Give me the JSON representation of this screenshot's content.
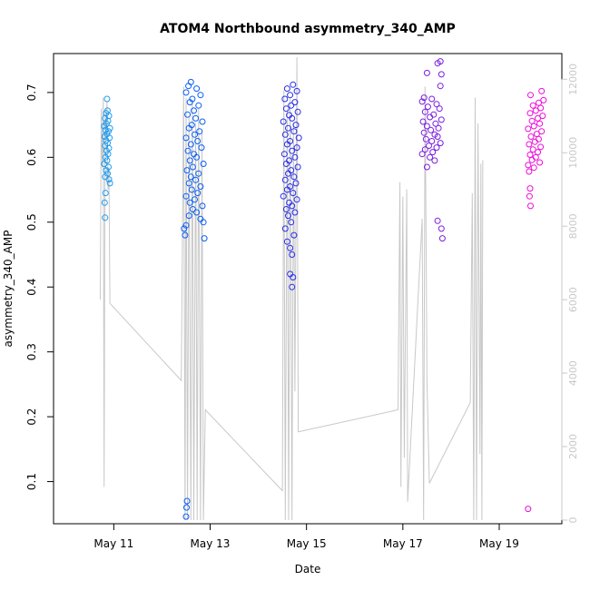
{
  "chart_data": {
    "type": "scatter",
    "title": "ATOM4 Northbound asymmetry_340_AMP",
    "xlabel": "Date",
    "ylabel": "asymmetry_340_AMP",
    "x_ticks": [
      "May 11",
      "May 13",
      "May 15",
      "May 17",
      "May 19"
    ],
    "x_tick_days": [
      11,
      13,
      15,
      17,
      19
    ],
    "xlim": [
      9.75,
      20.3
    ],
    "ylim": [
      0.035,
      0.76
    ],
    "y_ticks": [
      0.1,
      0.2,
      0.3,
      0.4,
      0.5,
      0.6,
      0.7
    ],
    "y2lim": [
      -100,
      12700
    ],
    "y2_ticks": [
      0,
      2000,
      4000,
      6000,
      8000,
      10000,
      12000
    ],
    "grid": false,
    "legend": "none",
    "series": [
      {
        "color": "#1f9bef",
        "x_range": [
          10.75,
          10.95
        ],
        "points": [
          [
            10.86,
            0.69
          ],
          [
            10.87,
            0.672
          ],
          [
            10.84,
            0.668
          ],
          [
            10.9,
            0.664
          ],
          [
            10.82,
            0.66
          ],
          [
            10.88,
            0.656
          ],
          [
            10.85,
            0.652
          ],
          [
            10.8,
            0.648
          ],
          [
            10.92,
            0.645
          ],
          [
            10.83,
            0.642
          ],
          [
            10.89,
            0.64
          ],
          [
            10.86,
            0.636
          ],
          [
            10.81,
            0.632
          ],
          [
            10.91,
            0.63
          ],
          [
            10.84,
            0.626
          ],
          [
            10.87,
            0.622
          ],
          [
            10.82,
            0.618
          ],
          [
            10.9,
            0.614
          ],
          [
            10.85,
            0.61
          ],
          [
            10.88,
            0.605
          ],
          [
            10.83,
            0.6
          ],
          [
            10.86,
            0.595
          ],
          [
            10.8,
            0.59
          ],
          [
            10.89,
            0.585
          ],
          [
            10.84,
            0.58
          ],
          [
            10.87,
            0.575
          ],
          [
            10.82,
            0.57
          ],
          [
            10.9,
            0.566
          ],
          [
            10.92,
            0.56
          ],
          [
            10.83,
            0.545
          ],
          [
            10.81,
            0.53
          ],
          [
            10.82,
            0.507
          ]
        ]
      },
      {
        "color": "#0a5ff5",
        "x_range": [
          12.45,
          12.9
        ],
        "points": [
          [
            12.6,
            0.716
          ],
          [
            12.55,
            0.71
          ],
          [
            12.72,
            0.706
          ],
          [
            12.5,
            0.7
          ],
          [
            12.8,
            0.696
          ],
          [
            12.63,
            0.69
          ],
          [
            12.58,
            0.685
          ],
          [
            12.76,
            0.68
          ],
          [
            12.66,
            0.672
          ],
          [
            12.53,
            0.666
          ],
          [
            12.7,
            0.66
          ],
          [
            12.84,
            0.655
          ],
          [
            12.62,
            0.65
          ],
          [
            12.56,
            0.645
          ],
          [
            12.78,
            0.64
          ],
          [
            12.68,
            0.635
          ],
          [
            12.5,
            0.63
          ],
          [
            12.74,
            0.625
          ],
          [
            12.6,
            0.62
          ],
          [
            12.82,
            0.615
          ],
          [
            12.54,
            0.61
          ],
          [
            12.66,
            0.605
          ],
          [
            12.72,
            0.6
          ],
          [
            12.58,
            0.595
          ],
          [
            12.86,
            0.59
          ],
          [
            12.64,
            0.585
          ],
          [
            12.52,
            0.58
          ],
          [
            12.76,
            0.575
          ],
          [
            12.6,
            0.57
          ],
          [
            12.7,
            0.565
          ],
          [
            12.56,
            0.56
          ],
          [
            12.8,
            0.555
          ],
          [
            12.62,
            0.55
          ],
          [
            12.74,
            0.545
          ],
          [
            12.5,
            0.54
          ],
          [
            12.68,
            0.535
          ],
          [
            12.58,
            0.53
          ],
          [
            12.84,
            0.525
          ],
          [
            12.64,
            0.52
          ],
          [
            12.72,
            0.515
          ],
          [
            12.56,
            0.51
          ],
          [
            12.8,
            0.505
          ],
          [
            12.86,
            0.5
          ],
          [
            12.5,
            0.495
          ],
          [
            12.46,
            0.49
          ],
          [
            12.48,
            0.48
          ],
          [
            12.88,
            0.475
          ],
          [
            12.52,
            0.07
          ],
          [
            12.51,
            0.06
          ],
          [
            12.5,
            0.046
          ]
        ]
      },
      {
        "color": "#2a2ee8",
        "x_range": [
          14.5,
          14.9
        ],
        "points": [
          [
            14.72,
            0.712
          ],
          [
            14.6,
            0.706
          ],
          [
            14.8,
            0.702
          ],
          [
            14.66,
            0.696
          ],
          [
            14.55,
            0.69
          ],
          [
            14.76,
            0.685
          ],
          [
            14.68,
            0.68
          ],
          [
            14.58,
            0.675
          ],
          [
            14.82,
            0.67
          ],
          [
            14.64,
            0.665
          ],
          [
            14.7,
            0.66
          ],
          [
            14.52,
            0.655
          ],
          [
            14.78,
            0.65
          ],
          [
            14.62,
            0.645
          ],
          [
            14.74,
            0.64
          ],
          [
            14.56,
            0.635
          ],
          [
            14.84,
            0.63
          ],
          [
            14.66,
            0.625
          ],
          [
            14.6,
            0.62
          ],
          [
            14.8,
            0.615
          ],
          [
            14.7,
            0.61
          ],
          [
            14.54,
            0.605
          ],
          [
            14.76,
            0.6
          ],
          [
            14.64,
            0.595
          ],
          [
            14.58,
            0.59
          ],
          [
            14.82,
            0.585
          ],
          [
            14.68,
            0.58
          ],
          [
            14.62,
            0.575
          ],
          [
            14.74,
            0.57
          ],
          [
            14.56,
            0.565
          ],
          [
            14.78,
            0.56
          ],
          [
            14.66,
            0.555
          ],
          [
            14.6,
            0.55
          ],
          [
            14.72,
            0.545
          ],
          [
            14.52,
            0.54
          ],
          [
            14.8,
            0.535
          ],
          [
            14.64,
            0.53
          ],
          [
            14.7,
            0.525
          ],
          [
            14.58,
            0.52
          ],
          [
            14.76,
            0.515
          ],
          [
            14.62,
            0.51
          ],
          [
            14.68,
            0.5
          ],
          [
            14.56,
            0.49
          ],
          [
            14.74,
            0.48
          ],
          [
            14.6,
            0.47
          ],
          [
            14.66,
            0.46
          ],
          [
            14.7,
            0.45
          ],
          [
            14.66,
            0.42
          ],
          [
            14.72,
            0.415
          ],
          [
            14.7,
            0.4
          ]
        ]
      },
      {
        "color": "#7a1ee0",
        "x_range": [
          17.3,
          17.85
        ],
        "points": [
          [
            17.78,
            0.748
          ],
          [
            17.72,
            0.745
          ],
          [
            17.5,
            0.73
          ],
          [
            17.8,
            0.728
          ],
          [
            17.78,
            0.71
          ],
          [
            17.44,
            0.692
          ],
          [
            17.6,
            0.69
          ],
          [
            17.4,
            0.686
          ],
          [
            17.7,
            0.682
          ],
          [
            17.52,
            0.678
          ],
          [
            17.76,
            0.675
          ],
          [
            17.46,
            0.67
          ],
          [
            17.64,
            0.666
          ],
          [
            17.56,
            0.662
          ],
          [
            17.8,
            0.658
          ],
          [
            17.42,
            0.655
          ],
          [
            17.68,
            0.652
          ],
          [
            17.5,
            0.648
          ],
          [
            17.74,
            0.645
          ],
          [
            17.58,
            0.642
          ],
          [
            17.44,
            0.638
          ],
          [
            17.66,
            0.635
          ],
          [
            17.72,
            0.632
          ],
          [
            17.48,
            0.628
          ],
          [
            17.6,
            0.625
          ],
          [
            17.78,
            0.622
          ],
          [
            17.54,
            0.618
          ],
          [
            17.7,
            0.615
          ],
          [
            17.46,
            0.612
          ],
          [
            17.62,
            0.608
          ],
          [
            17.4,
            0.605
          ],
          [
            17.56,
            0.6
          ],
          [
            17.66,
            0.595
          ],
          [
            17.5,
            0.585
          ],
          [
            17.72,
            0.502
          ],
          [
            17.8,
            0.49
          ],
          [
            17.82,
            0.475
          ]
        ]
      },
      {
        "color": "#f00bd8",
        "x_range": [
          19.55,
          19.95
        ],
        "points": [
          [
            19.88,
            0.702
          ],
          [
            19.65,
            0.696
          ],
          [
            19.92,
            0.688
          ],
          [
            19.82,
            0.684
          ],
          [
            19.7,
            0.68
          ],
          [
            19.86,
            0.676
          ],
          [
            19.76,
            0.672
          ],
          [
            19.64,
            0.668
          ],
          [
            19.9,
            0.664
          ],
          [
            19.8,
            0.66
          ],
          [
            19.68,
            0.656
          ],
          [
            19.84,
            0.652
          ],
          [
            19.72,
            0.648
          ],
          [
            19.6,
            0.644
          ],
          [
            19.88,
            0.64
          ],
          [
            19.78,
            0.636
          ],
          [
            19.66,
            0.632
          ],
          [
            19.82,
            0.628
          ],
          [
            19.74,
            0.624
          ],
          [
            19.62,
            0.62
          ],
          [
            19.86,
            0.616
          ],
          [
            19.7,
            0.612
          ],
          [
            19.8,
            0.608
          ],
          [
            19.64,
            0.604
          ],
          [
            19.76,
            0.6
          ],
          [
            19.68,
            0.596
          ],
          [
            19.84,
            0.592
          ],
          [
            19.6,
            0.588
          ],
          [
            19.72,
            0.584
          ],
          [
            19.62,
            0.578
          ],
          [
            19.64,
            0.552
          ],
          [
            19.63,
            0.54
          ],
          [
            19.65,
            0.525
          ],
          [
            19.6,
            0.058
          ]
        ]
      }
    ],
    "right_axis_line": {
      "color": "#c8c8c8",
      "points": [
        [
          10.72,
          6000
        ],
        [
          10.74,
          11200
        ],
        [
          10.76,
          9600
        ],
        [
          10.78,
          11500
        ],
        [
          10.8,
          900
        ],
        [
          10.82,
          11200
        ],
        [
          10.84,
          10400
        ],
        [
          10.86,
          11400
        ],
        [
          10.88,
          9000
        ],
        [
          10.9,
          9600
        ],
        [
          10.92,
          5900
        ],
        [
          12.4,
          3800
        ],
        [
          12.45,
          11800
        ],
        [
          12.48,
          0
        ],
        [
          12.5,
          11500
        ],
        [
          12.53,
          0
        ],
        [
          12.56,
          11000
        ],
        [
          12.6,
          0
        ],
        [
          12.63,
          11400
        ],
        [
          12.66,
          0
        ],
        [
          12.7,
          10800
        ],
        [
          12.73,
          0
        ],
        [
          12.76,
          11200
        ],
        [
          12.8,
          0
        ],
        [
          12.83,
          10600
        ],
        [
          12.86,
          0
        ],
        [
          12.9,
          3000
        ],
        [
          14.5,
          800
        ],
        [
          14.53,
          11700
        ],
        [
          14.56,
          0
        ],
        [
          14.6,
          11200
        ],
        [
          14.63,
          0
        ],
        [
          14.66,
          11500
        ],
        [
          14.7,
          0
        ],
        [
          14.73,
          10800
        ],
        [
          14.76,
          3500
        ],
        [
          14.8,
          12600
        ],
        [
          14.83,
          2400
        ],
        [
          16.9,
          3000
        ],
        [
          16.94,
          9200
        ],
        [
          16.96,
          900
        ],
        [
          17.0,
          8800
        ],
        [
          17.03,
          1700
        ],
        [
          17.08,
          9000
        ],
        [
          17.1,
          500
        ],
        [
          17.4,
          8200
        ],
        [
          17.43,
          0
        ],
        [
          17.46,
          11800
        ],
        [
          17.5,
          3800
        ],
        [
          17.55,
          1000
        ],
        [
          18.4,
          3200
        ],
        [
          18.44,
          8900
        ],
        [
          18.47,
          0
        ],
        [
          18.5,
          11500
        ],
        [
          18.53,
          0
        ],
        [
          18.56,
          10800
        ],
        [
          18.6,
          1800
        ],
        [
          18.62,
          9700
        ],
        [
          18.64,
          0
        ],
        [
          18.66,
          9800
        ]
      ]
    }
  }
}
